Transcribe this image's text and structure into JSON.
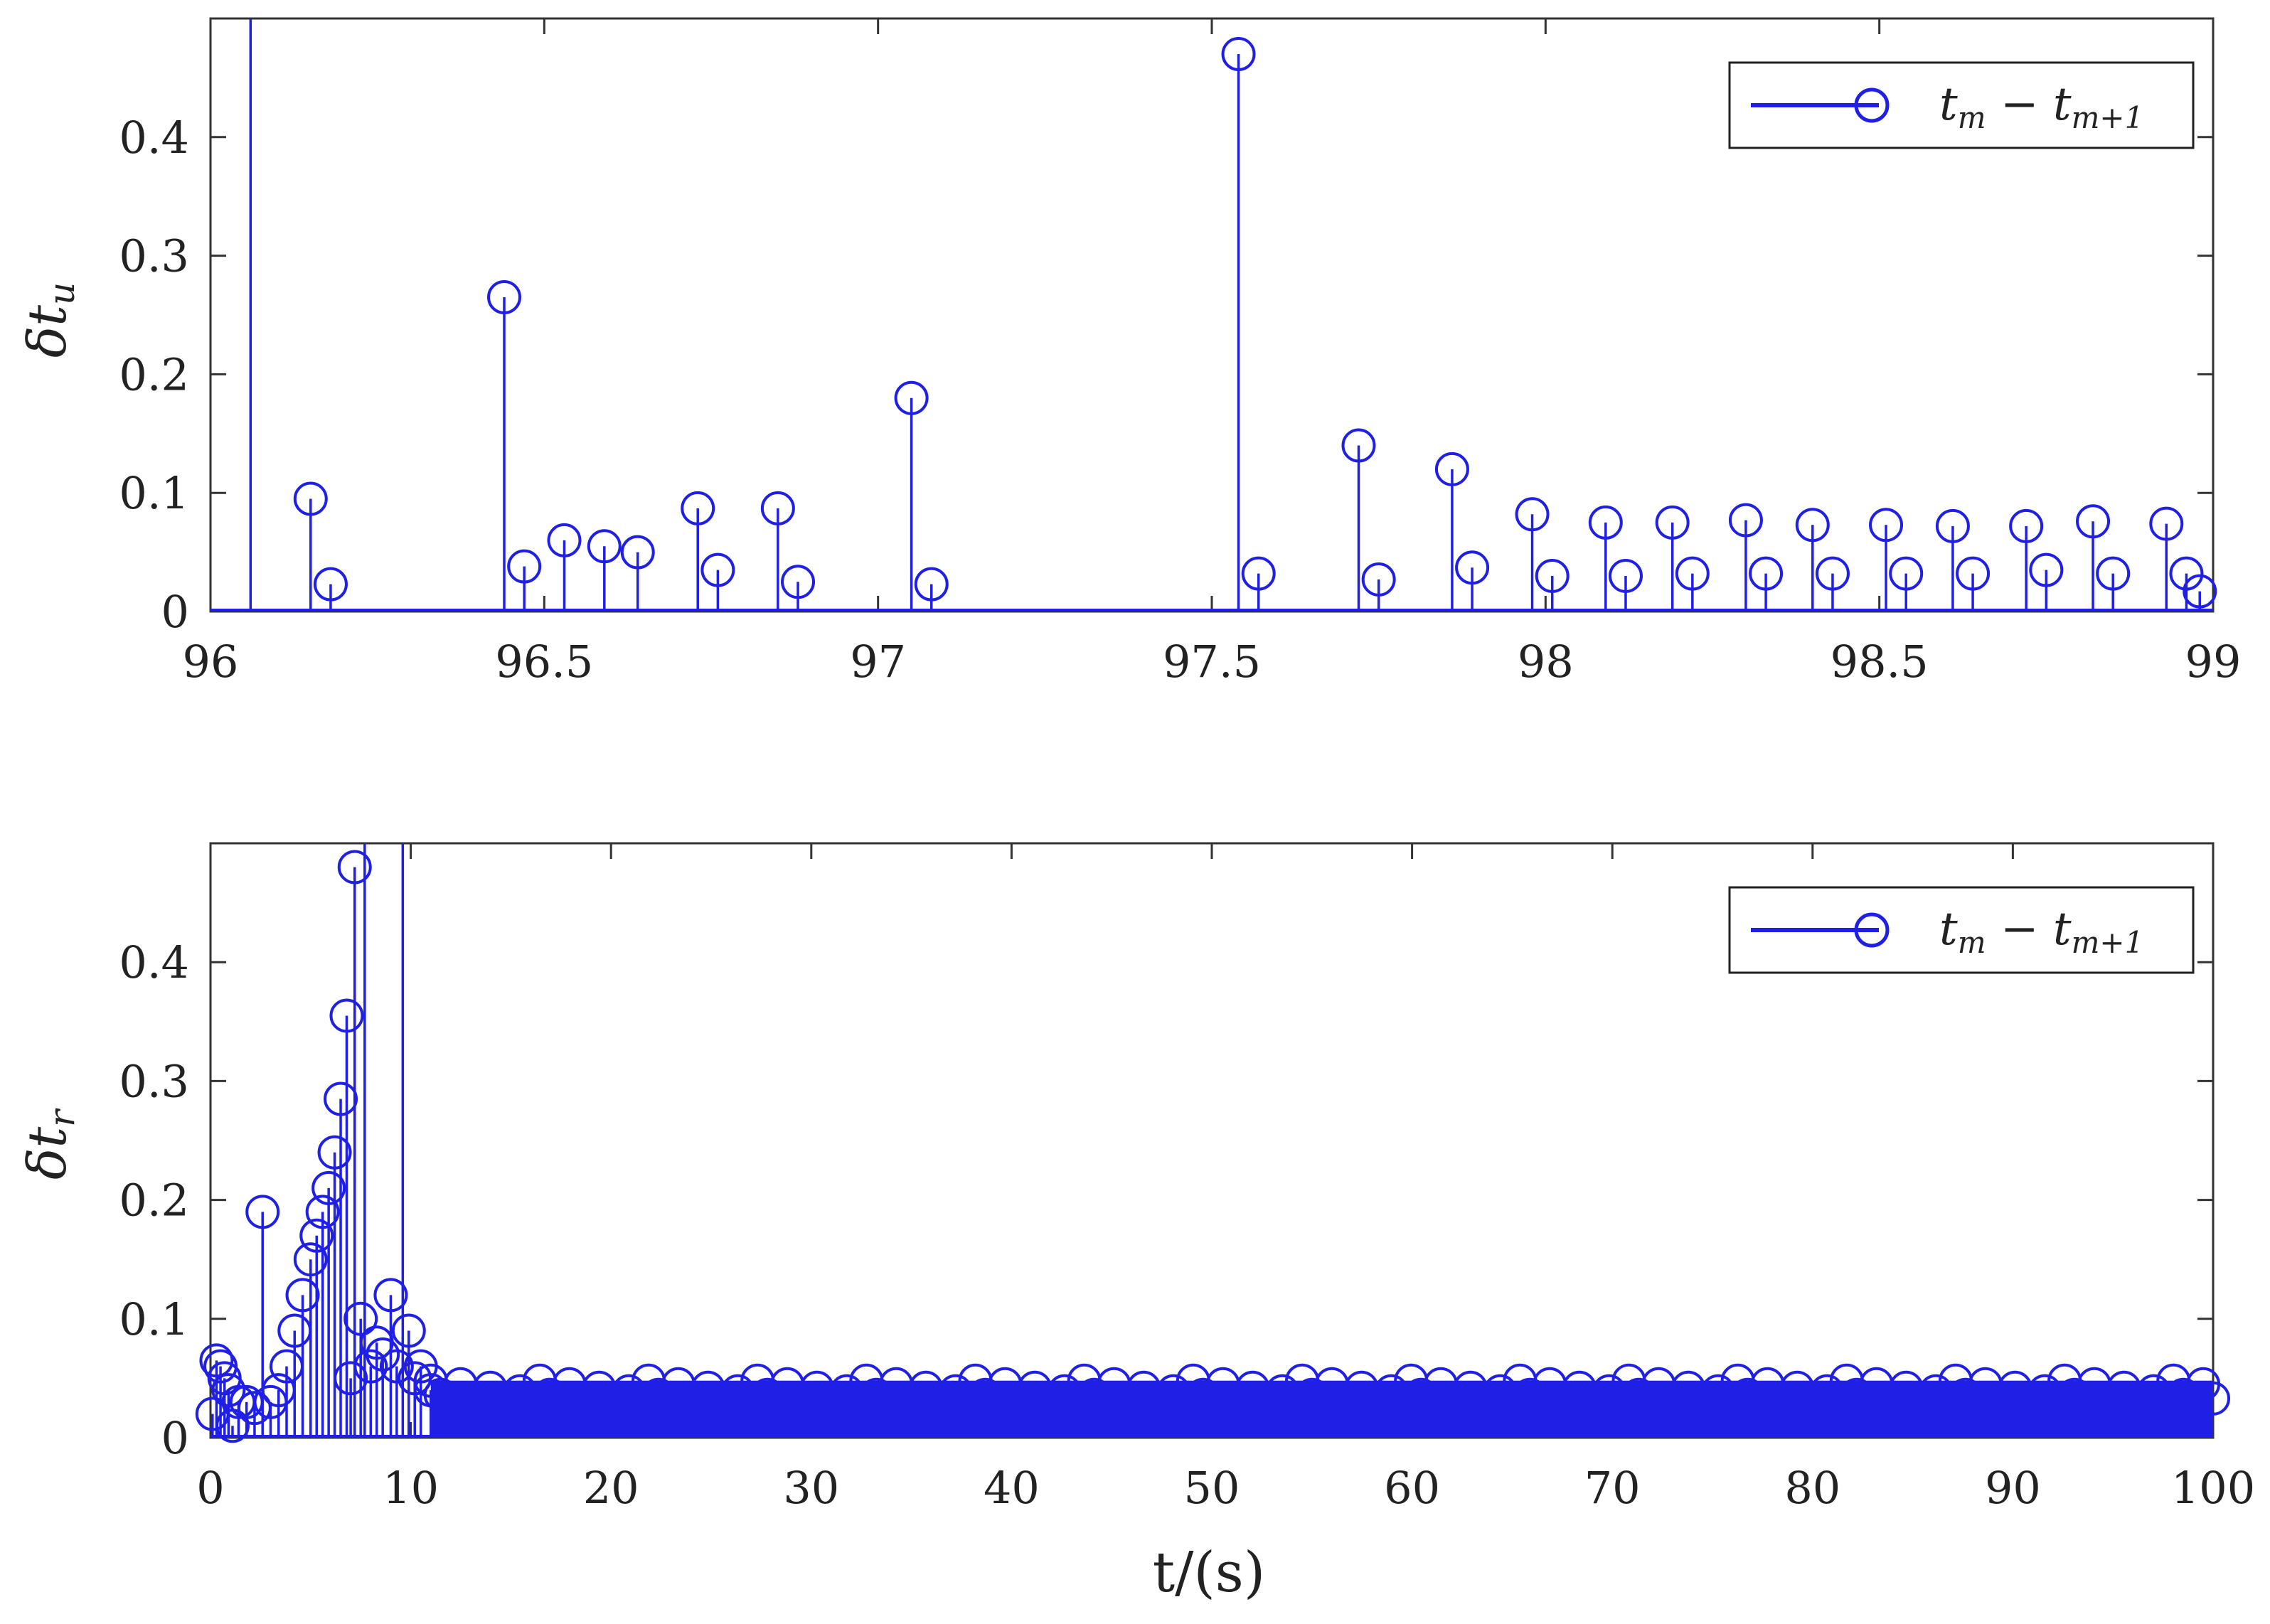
{
  "chart_data": [
    {
      "type": "stem",
      "ylabel": "δt_u",
      "xlabel": "",
      "xlim": [
        96,
        99
      ],
      "ylim": [
        0,
        0.5
      ],
      "xticks": [
        "96",
        "96.5",
        "97",
        "97.5",
        "98",
        "98.5",
        "99"
      ],
      "yticks": [
        "0",
        "0.1",
        "0.2",
        "0.3",
        "0.4"
      ],
      "legend": {
        "entries": [
          "t_m − t_{m+1}"
        ],
        "placement": "top-right"
      },
      "grid": false,
      "color": "#1f1fe6",
      "x": [
        96.06,
        96.15,
        96.18,
        96.44,
        96.47,
        96.53,
        96.59,
        96.64,
        96.73,
        96.76,
        96.85,
        96.88,
        97.05,
        97.08,
        97.54,
        97.57,
        97.72,
        97.75,
        97.86,
        97.89,
        97.98,
        98.01,
        98.09,
        98.12,
        98.19,
        98.22,
        98.3,
        98.33,
        98.4,
        98.43,
        98.51,
        98.54,
        98.61,
        98.64,
        98.72,
        98.75,
        98.82,
        98.85,
        98.93,
        98.96,
        98.98
      ],
      "y": [
        0.5,
        0.095,
        0.023,
        0.265,
        0.038,
        0.06,
        0.055,
        0.05,
        0.087,
        0.035,
        0.087,
        0.025,
        0.18,
        0.023,
        0.47,
        0.032,
        0.14,
        0.027,
        0.12,
        0.037,
        0.082,
        0.03,
        0.075,
        0.03,
        0.075,
        0.032,
        0.077,
        0.032,
        0.073,
        0.032,
        0.073,
        0.032,
        0.072,
        0.032,
        0.072,
        0.035,
        0.076,
        0.032,
        0.074,
        0.032,
        0.017
      ]
    },
    {
      "type": "stem",
      "ylabel": "δt_r",
      "xlabel": "t/(s)",
      "xlim": [
        0,
        100
      ],
      "ylim": [
        0,
        0.5
      ],
      "xticks": [
        "0",
        "10",
        "20",
        "30",
        "40",
        "50",
        "60",
        "70",
        "80",
        "90",
        "100"
      ],
      "yticks": [
        "0",
        "0.1",
        "0.2",
        "0.3",
        "0.4"
      ],
      "legend": {
        "entries": [
          "t_m − t_{m+1}"
        ],
        "placement": "top-right"
      },
      "grid": false,
      "color": "#1f1fe6",
      "x": [
        0.1,
        0.3,
        0.5,
        0.7,
        0.9,
        1.1,
        1.4,
        1.8,
        2.2,
        2.6,
        3.0,
        3.4,
        3.8,
        4.2,
        4.6,
        5.0,
        5.3,
        5.6,
        5.9,
        6.2,
        6.5,
        6.8,
        7.0,
        7.2,
        7.5,
        7.7,
        8.0,
        8.3,
        8.6,
        9.0,
        9.3,
        9.6,
        9.9,
        10.2,
        10.5,
        11.0
      ],
      "y": [
        0.02,
        0.065,
        0.06,
        0.05,
        0.04,
        0.01,
        0.03,
        0.03,
        0.025,
        0.19,
        0.03,
        0.04,
        0.06,
        0.09,
        0.12,
        0.15,
        0.17,
        0.19,
        0.21,
        0.24,
        0.285,
        0.355,
        0.05,
        0.48,
        0.1,
        0.5,
        0.06,
        0.08,
        0.07,
        0.12,
        0.06,
        0.5,
        0.09,
        0.05,
        0.06,
        0.04
      ],
      "steady": {
        "x_range": [
          11,
          100
        ],
        "y_low": 0.015,
        "y_high": 0.048
      }
    }
  ],
  "legend_text": {
    "t": "t",
    "m": "m",
    "minus": "−",
    "m1": "m+1"
  },
  "xlabel_text": "t/(s)",
  "ylabel_top": {
    "main": "δt",
    "sub": "u"
  },
  "ylabel_bottom": {
    "main": "δt",
    "sub": "r"
  }
}
